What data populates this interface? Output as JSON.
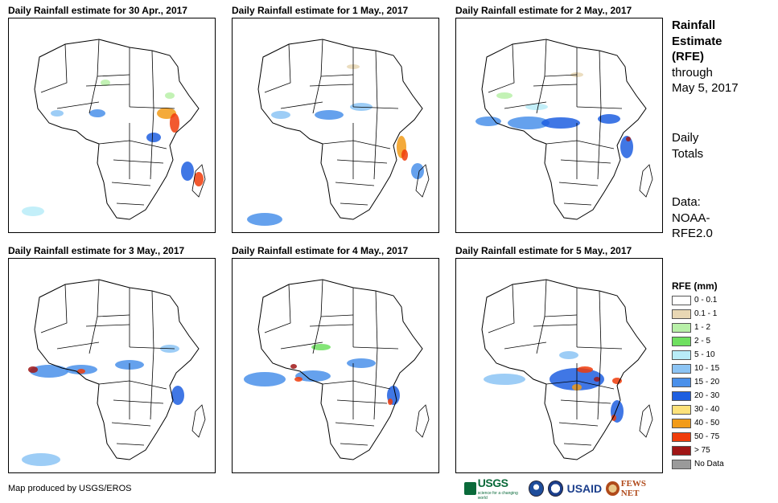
{
  "panels": [
    {
      "title": "Daily Rainfall estimate for 30 Apr., 2017"
    },
    {
      "title": "Daily Rainfall estimate for 1 May., 2017"
    },
    {
      "title": "Daily Rainfall estimate for 2 May., 2017"
    },
    {
      "title": "Daily Rainfall estimate for 3 May., 2017"
    },
    {
      "title": "Daily Rainfall estimate for 4 May., 2017"
    },
    {
      "title": "Daily Rainfall estimate for 5 May., 2017"
    }
  ],
  "side": {
    "title_line1": "Rainfall",
    "title_line2": "Estimate",
    "title_line3": "(RFE)",
    "through": "through",
    "date": "May 5, 2017",
    "totals_line1": "Daily",
    "totals_line2": "Totals",
    "data_line1": "Data:",
    "data_line2": "NOAA-",
    "data_line3": "RFE2.0"
  },
  "legend": {
    "title": "RFE (mm)",
    "items": [
      {
        "label": "0 - 0.1",
        "color": "#ffffff"
      },
      {
        "label": "0.1 - 1",
        "color": "#e8d7b4"
      },
      {
        "label": "1 - 2",
        "color": "#b8f0a8"
      },
      {
        "label": "2 - 5",
        "color": "#6fe060"
      },
      {
        "label": "5 - 10",
        "color": "#b8ecf8"
      },
      {
        "label": "10 - 15",
        "color": "#8cc4f4"
      },
      {
        "label": "15 - 20",
        "color": "#4a90ea"
      },
      {
        "label": "20 - 30",
        "color": "#1e5fe0"
      },
      {
        "label": "30 - 40",
        "color": "#fde27a"
      },
      {
        "label": "40 - 50",
        "color": "#f29b18"
      },
      {
        "label": "50 - 75",
        "color": "#f03c0a"
      },
      {
        "label": "> 75",
        "color": "#a01616"
      },
      {
        "label": "No Data",
        "color": "#9a9a9a"
      }
    ]
  },
  "footer": {
    "credit": "Map produced by USGS/EROS",
    "logos": {
      "usgs": "USGS",
      "usgs_tagline": "science for a changing world",
      "usaid": "USAID",
      "fews": "FEWS NET"
    }
  }
}
